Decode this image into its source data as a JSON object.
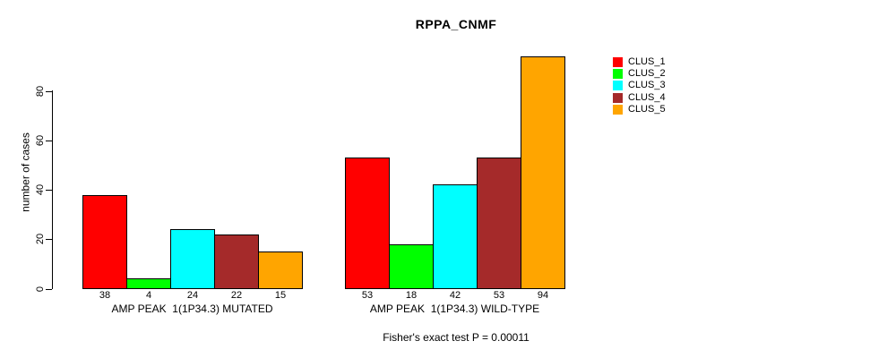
{
  "chart_data": {
    "type": "bar",
    "title": "RPPA_CNMF",
    "ylabel": "number of cases",
    "xlabel": "",
    "categories": [
      "AMP PEAK  1(1P34.3) MUTATED",
      "AMP PEAK  1(1P34.3) WILD-TYPE"
    ],
    "series": [
      {
        "name": "CLUS_1",
        "color": "#FF0000",
        "values": [
          38,
          53
        ]
      },
      {
        "name": "CLUS_2",
        "color": "#00FF00",
        "values": [
          4,
          18
        ]
      },
      {
        "name": "CLUS_3",
        "color": "#00FFFF",
        "values": [
          24,
          42
        ]
      },
      {
        "name": "CLUS_4",
        "color": "#A52A2A",
        "values": [
          22,
          53
        ]
      },
      {
        "name": "CLUS_5",
        "color": "#FFA500",
        "values": [
          15,
          94
        ]
      }
    ],
    "bar_value_labels": [
      [
        38,
        4,
        24,
        22,
        15
      ],
      [
        53,
        18,
        42,
        53,
        94
      ]
    ],
    "y_ticks": [
      0,
      20,
      40,
      60,
      80
    ],
    "y_tick_labels": [
      "0",
      "20",
      "40",
      "60",
      "80"
    ],
    "ylim": [
      0,
      97
    ],
    "grid": false,
    "legend_position": "top-right",
    "legend_entries": [
      "CLUS_1",
      "CLUS_2",
      "CLUS_3",
      "CLUS_4",
      "CLUS_5"
    ],
    "annotation": "Fisher's exact test P = 0.00011"
  }
}
